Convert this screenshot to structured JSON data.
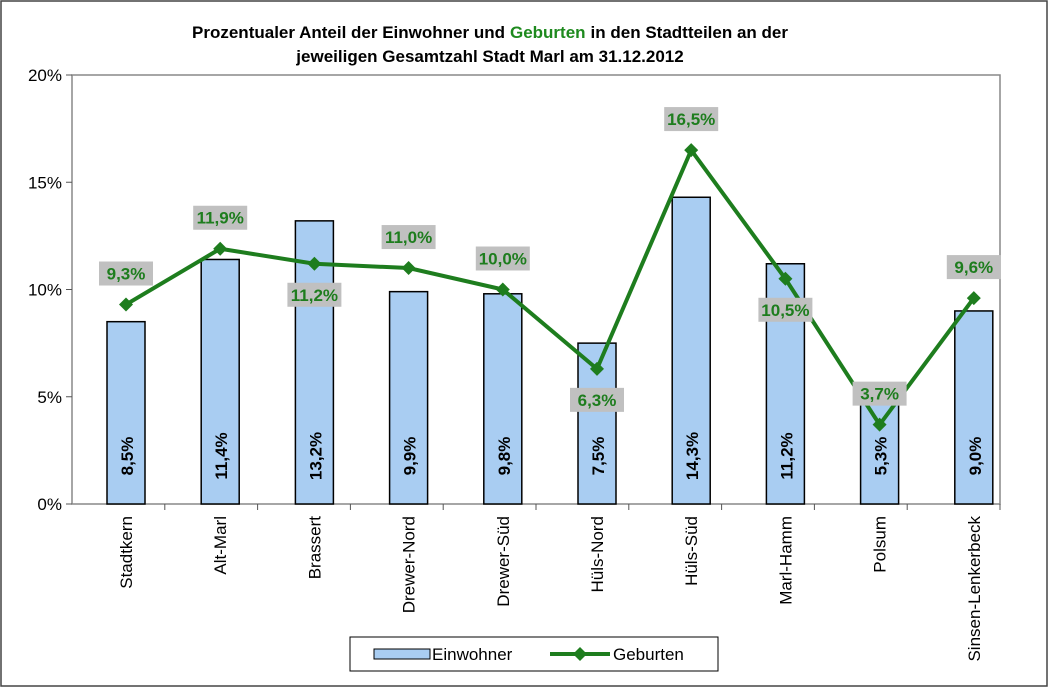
{
  "chart_data": {
    "type": "bar",
    "title": [
      "Prozentualer Anteil der Einwohner und",
      "Geburten",
      "in den Stadtteilen an der",
      "jeweiligen Gesamtzahl Stadt Marl am 31.12.2012"
    ],
    "title_colors": [
      "#000000",
      "#1e8a1e",
      "#000000",
      "#000000"
    ],
    "categories": [
      "Stadtkern",
      "Alt-Marl",
      "Brassert",
      "Drewer-Nord",
      "Drewer-Süd",
      "Hüls-Nord",
      "Hüls-Süd",
      "Marl-Hamm",
      "Polsum",
      "Sinsen-Lenkerbeck"
    ],
    "series": [
      {
        "name": "Einwohner",
        "type": "bar",
        "color": "#a9cdf2",
        "values": [
          8.5,
          11.4,
          13.2,
          9.9,
          9.8,
          7.5,
          14.3,
          11.2,
          5.3,
          9.0
        ],
        "value_labels": [
          "8,5%",
          "11,4%",
          "13,2%",
          "9,9%",
          "9,8%",
          "7,5%",
          "14,3%",
          "11,2%",
          "5,3%",
          "9,0%"
        ]
      },
      {
        "name": "Geburten",
        "type": "line",
        "color": "#1e7d1e",
        "values": [
          9.3,
          11.9,
          11.2,
          11.0,
          10.0,
          6.3,
          16.5,
          10.5,
          3.7,
          9.6
        ],
        "value_labels": [
          "9,3%",
          "11,9%",
          "11,2%",
          "11,0%",
          "10,0%",
          "6,3%",
          "16,5%",
          "10,5%",
          "3,7%",
          "9,6%"
        ]
      }
    ],
    "ylim": [
      0,
      20
    ],
    "yticks": [
      {
        "value": 0,
        "label": "0%"
      },
      {
        "value": 5,
        "label": "5%"
      },
      {
        "value": 10,
        "label": "10%"
      },
      {
        "value": 15,
        "label": "15%"
      },
      {
        "value": 20,
        "label": "20%"
      }
    ],
    "legend": "bottom"
  }
}
